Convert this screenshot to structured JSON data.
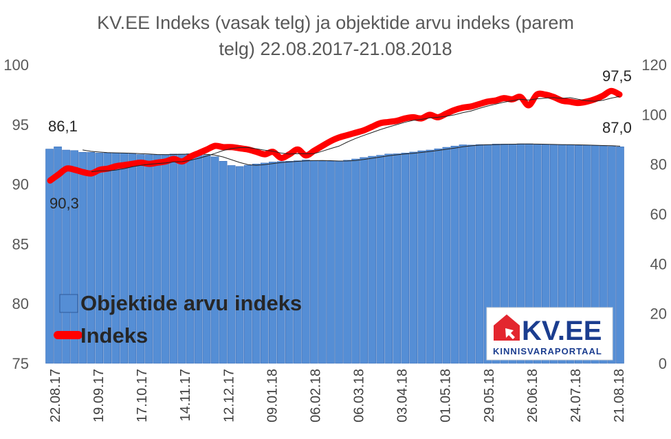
{
  "chart_data": {
    "type": "bar+line",
    "title_lines": [
      "KV.EE Indeks (vasak telg) ja objektide arvu indeks (parem",
      "telg) 22.08.2017-21.08.2018"
    ],
    "left_axis": {
      "ylim": [
        75,
        100
      ],
      "ticks": [
        "75",
        "80",
        "85",
        "90",
        "95",
        "100"
      ]
    },
    "right_axis": {
      "ylim": [
        0,
        120
      ],
      "ticks": [
        "0",
        "20",
        "40",
        "60",
        "80",
        "100",
        "120"
      ]
    },
    "x_tick_labels": [
      "22.08.17",
      "19.09.17",
      "17.10.17",
      "14.11.17",
      "12.12.17",
      "09.01.18",
      "06.02.18",
      "06.03.18",
      "03.04.18",
      "01.05.18",
      "29.05.18",
      "26.06.18",
      "24.07.18",
      "21.08.18"
    ],
    "bars": {
      "name": "Objektide arvu indeks",
      "axis": "right",
      "color": "#558ed5",
      "values": [
        86.1,
        87.0,
        85.7,
        85.5,
        84.8,
        84.8,
        84.5,
        84.5,
        84.5,
        84.5,
        84.2,
        83.9,
        83.8,
        83.8,
        83.9,
        84.1,
        84.1,
        84.2,
        83.9,
        83.6,
        83.0,
        81.2,
        79.5,
        79.1,
        79.6,
        80.1,
        80.5,
        80.9,
        81.1,
        81.2,
        81.4,
        81.7,
        81.5,
        81.3,
        81.2,
        81.2,
        81.6,
        82.1,
        82.7,
        83.2,
        83.6,
        84.1,
        84.2,
        84.5,
        84.9,
        85.4,
        85.7,
        86.2,
        86.8,
        87.3,
        87.8,
        87.7,
        87.9,
        87.9,
        88.1,
        88.1,
        88.1,
        88.2,
        88.2,
        87.9,
        87.9,
        87.8,
        87.9,
        87.8,
        87.6,
        87.6,
        87.5,
        87.4,
        87.2,
        87.0
      ]
    },
    "line": {
      "name": "Indeks",
      "axis": "left",
      "color": "#ff0000",
      "values": [
        90.3,
        90.8,
        91.3,
        91.2,
        91.0,
        90.9,
        91.2,
        91.3,
        91.5,
        91.6,
        91.7,
        91.8,
        91.7,
        91.8,
        91.9,
        92.1,
        91.9,
        92.3,
        92.6,
        92.9,
        93.2,
        93.1,
        93.1,
        93.0,
        92.9,
        92.7,
        92.5,
        92.7,
        92.2,
        92.5,
        92.9,
        92.4,
        92.8,
        93.2,
        93.6,
        93.9,
        94.1,
        94.3,
        94.5,
        94.8,
        95.1,
        95.2,
        95.3,
        95.5,
        95.6,
        95.5,
        95.8,
        95.6,
        95.9,
        96.2,
        96.4,
        96.5,
        96.7,
        96.9,
        97.0,
        97.2,
        97.1,
        97.3,
        96.6,
        97.5,
        97.5,
        97.3,
        97.0,
        96.9,
        96.8,
        96.9,
        97.1,
        97.4,
        97.8,
        97.5
      ]
    },
    "labels": {
      "bar_first": "86,1",
      "line_first": "90,3",
      "bar_last": "87,0",
      "line_last": "97,5"
    },
    "legend": {
      "position": "bottom-left",
      "entries": [
        "Objektide arvu indeks",
        "Indeks"
      ]
    }
  },
  "logo": {
    "text": "KV.EE",
    "subtext": "KINNISVARAPORTAAL",
    "color": "#1b3d8f",
    "accent": "#e3262f"
  }
}
